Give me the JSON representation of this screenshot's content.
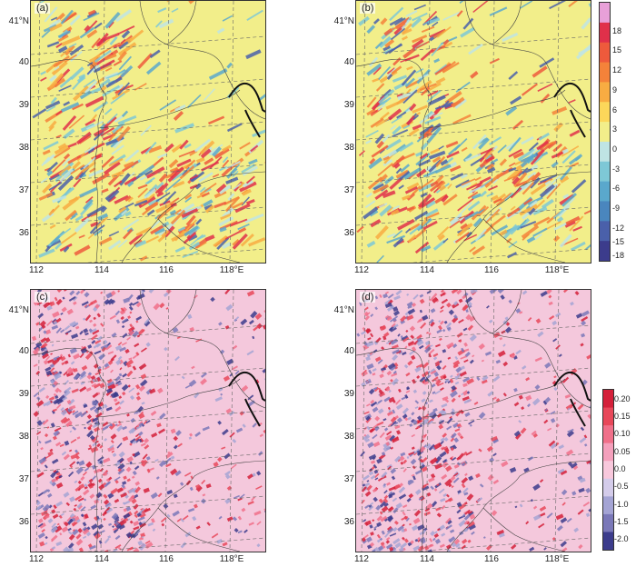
{
  "panels": [
    {
      "label": "(a)"
    },
    {
      "label": "(b)"
    },
    {
      "label": "(c)"
    },
    {
      "label": "(d)"
    }
  ],
  "lat_labels_top": [
    "41°N",
    "40",
    "39",
    "38",
    "37",
    "36"
  ],
  "lat_labels_bottom": [
    "41°N",
    "40",
    "39",
    "38",
    "37",
    "36"
  ],
  "lon_labels": [
    "112",
    "114",
    "116",
    "118°E"
  ],
  "colorbar_top": {
    "ticks": [
      "18",
      "15",
      "12",
      "9",
      "6",
      "3",
      "0",
      "-3",
      "-6",
      "-9",
      "-12",
      "-15",
      "-18"
    ],
    "colors": [
      "#e8a0d8",
      "#e0304a",
      "#ee5a3c",
      "#f4823a",
      "#f8ac42",
      "#fcd75a",
      "#f2ee8a",
      "#bfe4e4",
      "#7ec8d6",
      "#5aa8cc",
      "#4a86be",
      "#4a60aa",
      "#3c3c8c"
    ]
  },
  "colorbar_bottom": {
    "ticks": [
      "0.20",
      "0.15",
      "0.10",
      "0.05",
      "0.0",
      "-0.5",
      "-1.0",
      "-1.5",
      "-2.0"
    ],
    "colors": [
      "#d4203a",
      "#e8485a",
      "#f0708a",
      "#f4a0bc",
      "#f8c8dc",
      "#d4ccea",
      "#a4a4d4",
      "#7a78b8",
      "#3c3c8c"
    ]
  }
}
